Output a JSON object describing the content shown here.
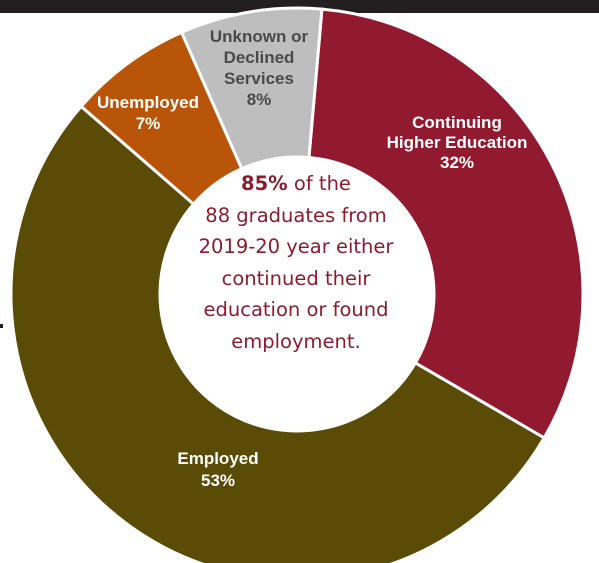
{
  "chart_data": {
    "type": "pie",
    "categories": [
      "Continuing Higher Education",
      "Employed",
      "Unemployed",
      "Unknown or Declined Services"
    ],
    "values": [
      32,
      53,
      7,
      8
    ],
    "colors": [
      "#921a30",
      "#5a4b06",
      "#b85509",
      "#bebebe"
    ],
    "labels": [
      {
        "lines": [
          "Continuing",
          "Higher Education",
          "32%"
        ],
        "color": "#ffffff"
      },
      {
        "lines": [
          "Employed",
          "53%"
        ],
        "color": "#ffffff"
      },
      {
        "lines": [
          "Unemployed",
          "7%"
        ],
        "color": "#ffffff"
      },
      {
        "lines": [
          "Unknown or",
          "Declined",
          "Services",
          "8%"
        ],
        "color": "#4a4a4a"
      }
    ],
    "center_text": {
      "highlight": "85%",
      "line1_rest": " of the",
      "line2": "88 graduates from",
      "line3": "2019-20 year either",
      "line4": "continued their",
      "line5": "education or found",
      "line6": "employment."
    }
  }
}
